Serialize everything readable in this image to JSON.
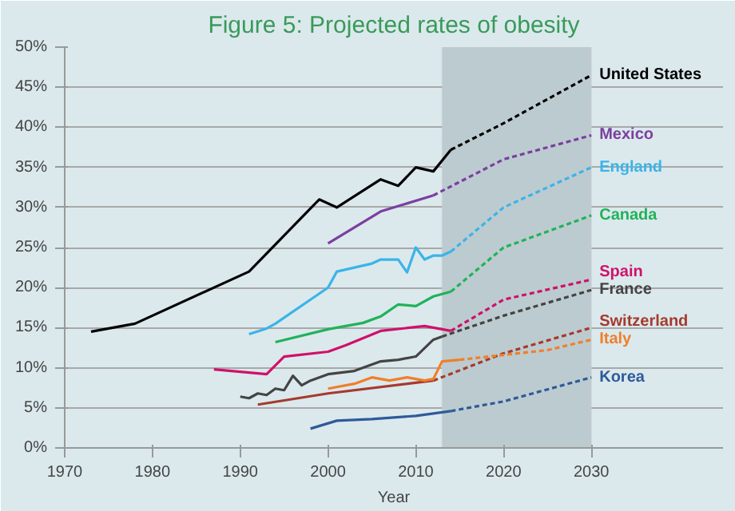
{
  "chart_data": {
    "type": "line",
    "title": "Figure 5: Projected rates of obesity",
    "xlabel": "Year",
    "xlim": [
      1970,
      2045
    ],
    "xticks": [
      1970,
      1980,
      1990,
      2000,
      2010,
      2020,
      2030
    ],
    "ylim": [
      0,
      50
    ],
    "yticks": [
      {
        "value": 0,
        "label": "0%"
      },
      {
        "value": 5,
        "label": "5%"
      },
      {
        "value": 10,
        "label": "10%"
      },
      {
        "value": 15,
        "label": "15%"
      },
      {
        "value": 20,
        "label": "20%"
      },
      {
        "value": 25,
        "label": "25%"
      },
      {
        "value": 30,
        "label": "30%"
      },
      {
        "value": 35,
        "label": "35%"
      },
      {
        "value": 40,
        "label": "40%"
      },
      {
        "value": 45,
        "label": "45%"
      },
      {
        "value": 50,
        "label": "50%"
      }
    ],
    "grid": "y",
    "legend": false,
    "bands": [
      {
        "axis": "x",
        "from": 2013,
        "to": 2030,
        "color": "#bccbcf"
      }
    ],
    "series": [
      {
        "color": "#000000",
        "line_style": "solid",
        "x": [
          1973,
          1978,
          1991,
          1999,
          2001,
          2006,
          2008,
          2010,
          2012,
          2014
        ],
        "values": [
          14.5,
          15.5,
          22,
          31,
          30,
          33.5,
          32.7,
          35,
          34.5,
          37.2
        ]
      },
      {
        "name": "United States",
        "color": "#000000",
        "line_style": "dashed",
        "x": [
          2014,
          2020,
          2030
        ],
        "values": [
          37.2,
          40.5,
          46.5
        ]
      },
      {
        "color": "#7b3fa0",
        "line_style": "solid",
        "x": [
          2000,
          2006,
          2012
        ],
        "values": [
          25.5,
          29.5,
          31.5
        ]
      },
      {
        "name": "Mexico",
        "color": "#7b3fa0",
        "line_style": "dashed",
        "x": [
          2012,
          2020,
          2030
        ],
        "values": [
          31.5,
          36,
          39
        ]
      },
      {
        "color": "#3bb4e8",
        "line_style": "solid",
        "x": [
          1991,
          1993,
          1994,
          1998,
          2000,
          2001,
          2003,
          2005,
          2006,
          2008,
          2009,
          2010,
          2011,
          2012,
          2013,
          2014
        ],
        "values": [
          14.2,
          14.9,
          15.5,
          18.5,
          20,
          22,
          22.5,
          23,
          23.5,
          23.5,
          21.9,
          25,
          23.5,
          24,
          24,
          24.5
        ]
      },
      {
        "name": "England",
        "color": "#3bb4e8",
        "line_style": "dashed",
        "x": [
          2014,
          2020,
          2030
        ],
        "values": [
          24.5,
          30,
          35
        ]
      },
      {
        "color": "#21b259",
        "line_style": "solid",
        "x": [
          1994,
          2000,
          2004,
          2006,
          2008,
          2010,
          2012,
          2014
        ],
        "values": [
          13.2,
          14.8,
          15.6,
          16.4,
          17.9,
          17.7,
          18.9,
          19.5
        ]
      },
      {
        "name": "Canada",
        "color": "#21b259",
        "line_style": "dashed",
        "x": [
          2014,
          2020,
          2030
        ],
        "values": [
          19.5,
          25,
          29
        ]
      },
      {
        "color": "#d0106a",
        "line_style": "solid",
        "x": [
          1987,
          1993,
          1995,
          2000,
          2002,
          2006,
          2011,
          2014
        ],
        "values": [
          9.8,
          9.2,
          11.4,
          12,
          12.8,
          14.6,
          15.2,
          14.6
        ]
      },
      {
        "name": "Spain",
        "color": "#d0106a",
        "line_style": "dashed",
        "x": [
          2014,
          2020,
          2030
        ],
        "values": [
          14.6,
          18.5,
          21
        ]
      },
      {
        "color": "#444444",
        "line_style": "solid",
        "x": [
          1990,
          1991,
          1992,
          1993,
          1994,
          1995,
          1996,
          1997,
          1998,
          2000,
          2003,
          2006,
          2008,
          2010,
          2012,
          2013
        ],
        "values": [
          6.4,
          6.2,
          6.8,
          6.6,
          7.4,
          7.2,
          9,
          7.8,
          8.4,
          9.2,
          9.6,
          10.8,
          11,
          11.4,
          13.5,
          13.9
        ]
      },
      {
        "name": "France",
        "color": "#444444",
        "line_style": "dashed",
        "x": [
          2013,
          2020,
          2030
        ],
        "values": [
          13.9,
          16.5,
          19.7
        ]
      },
      {
        "color": "#a63a2e",
        "line_style": "solid",
        "x": [
          1992,
          2000,
          2012
        ],
        "values": [
          5.4,
          6.8,
          8.4
        ]
      },
      {
        "name": "Switzerland",
        "color": "#a63a2e",
        "line_style": "dashed",
        "x": [
          2012,
          2020,
          2030
        ],
        "values": [
          8.4,
          11.8,
          15
        ]
      },
      {
        "color": "#f07f2a",
        "line_style": "solid",
        "x": [
          2000,
          2003,
          2005,
          2007,
          2009,
          2011,
          2012,
          2013,
          2015
        ],
        "values": [
          7.4,
          8,
          8.8,
          8.4,
          8.8,
          8.4,
          8.6,
          10.8,
          11
        ]
      },
      {
        "name": "Italy",
        "color": "#f07f2a",
        "line_style": "dashed",
        "x": [
          2015,
          2020,
          2025,
          2030
        ],
        "values": [
          11,
          11.6,
          12.2,
          13.5
        ]
      },
      {
        "color": "#2f5a9a",
        "line_style": "solid",
        "x": [
          1998,
          2001,
          2005,
          2010,
          2014
        ],
        "values": [
          2.4,
          3.4,
          3.6,
          4,
          4.6
        ]
      },
      {
        "name": "Korea",
        "color": "#2f5a9a",
        "line_style": "dashed",
        "x": [
          2014,
          2020,
          2030
        ],
        "values": [
          4.6,
          5.8,
          8.8
        ]
      }
    ]
  }
}
